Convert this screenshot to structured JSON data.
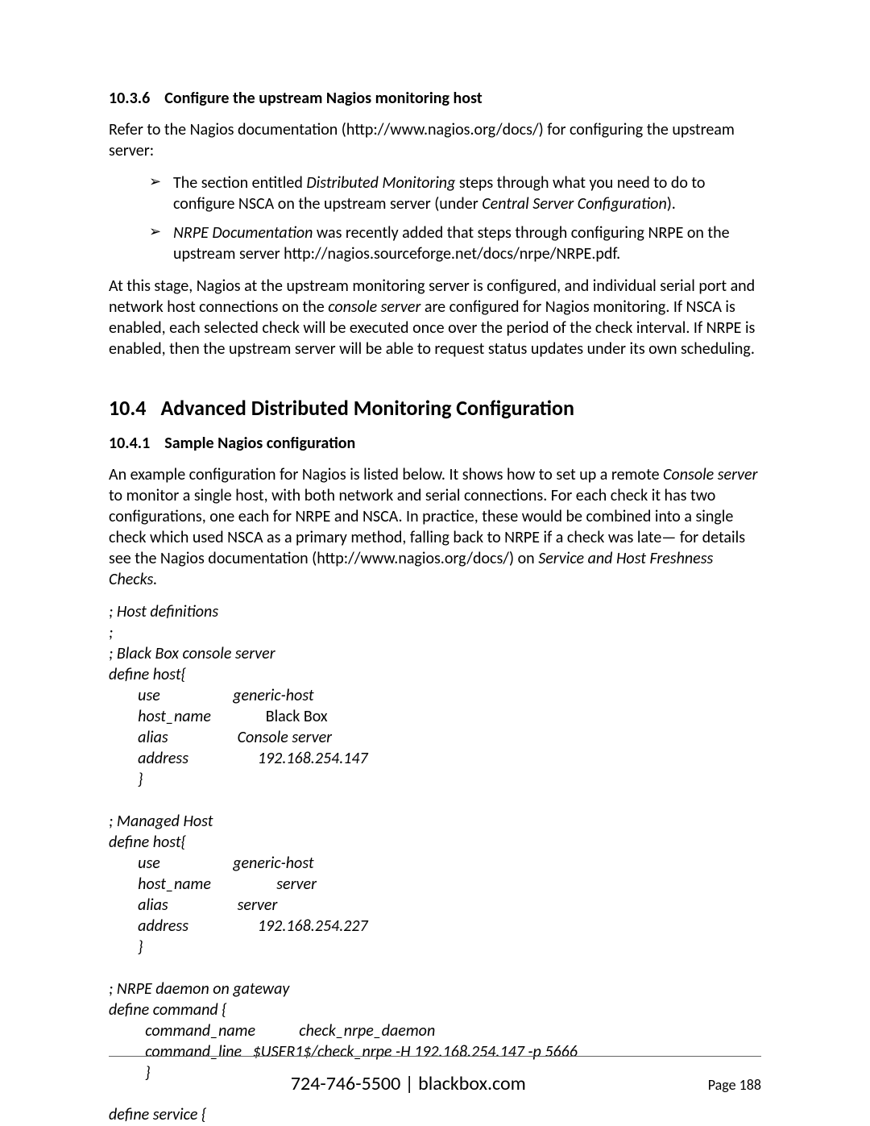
{
  "section_1036": {
    "number": "10.3.6",
    "title": "Configure the upstream Nagios monitoring host"
  },
  "para_refer": "Refer to the Nagios documentation (http://www.nagios.org/docs/) for configuring the upstream server:",
  "bullet1_a": "The section entitled ",
  "bullet1_b": "Distributed Monitoring",
  "bullet1_c": " steps through what you need to do to configure NSCA on the upstream server (under ",
  "bullet1_d": "Central Server Configuration",
  "bullet1_e": ").",
  "bullet2_a": "NRPE Documentation",
  "bullet2_b": " was recently added that steps through configuring NRPE on the upstream server http://nagios.sourceforge.net/docs/nrpe/NRPE.pdf.",
  "para_stage_a": "At this stage, Nagios at the upstream monitoring server is configured, and individual serial port and network host connections on the ",
  "para_stage_b": "console server",
  "para_stage_c": " are configured for Nagios monitoring. If NSCA is enabled, each selected check will be executed once over the period of the check interval. If NRPE is enabled, then the upstream server will be able to request status updates under its own scheduling.",
  "section_104": {
    "number": "10.4",
    "title": "Advanced Distributed Monitoring Configuration"
  },
  "section_1041": {
    "number": "10.4.1",
    "title": "Sample Nagios configuration"
  },
  "para_example_a": "An example configuration for Nagios is listed below. It shows how to set up a remote ",
  "para_example_b": "Console server",
  "para_example_c": " to monitor a single host, with both network and serial connections. For each check it has two configurations, one each for NRPE and NSCA. In practice, these would be combined into a single check which used NSCA as a primary method, falling back to NRPE if a check was late— for details see the Nagios documentation (http://www.nagios.org/docs/) on ",
  "para_example_d": "Service and Host Freshness Checks.",
  "code": {
    "l01": "; Host definitions",
    "l02": ";",
    "l03": "; Black Box console server",
    "l04": "define host{",
    "l05": "        use                    generic-host",
    "l06a": "        host_name               ",
    "l06b": "Black Box",
    "l07": "        alias                   Console server",
    "l08": "        address                   192.168.254.147",
    "l09": "        }",
    "l10": "",
    "l11": "; Managed Host",
    "l12": "define host{",
    "l13": "        use                    generic-host",
    "l14": "        host_name                  server",
    "l15": "        alias                   server",
    "l16": "        address                   192.168.254.227",
    "l17": "        }",
    "l18": "",
    "l19": "; NRPE daemon on gateway",
    "l20": "define command {",
    "l21": "          command_name            check_nrpe_daemon",
    "l22": "          command_line   $USER1$/check_nrpe -H 192.168.254.147 -p 5666",
    "l23": "          }",
    "l24": "",
    "l25": "define service {"
  },
  "footer": {
    "center": "724-746-5500 | blackbox.com",
    "right": "Page 188"
  }
}
